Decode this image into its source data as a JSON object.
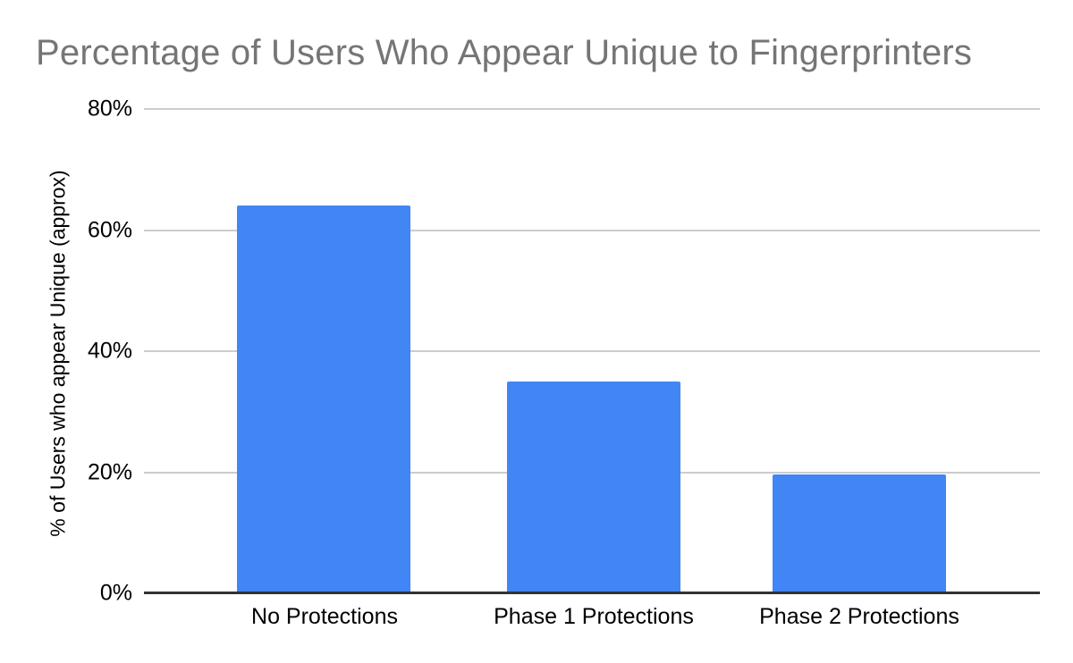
{
  "chart_data": {
    "type": "bar",
    "title": "Percentage of Users Who Appear Unique to Fingerprinters",
    "xlabel": "",
    "ylabel": "% of Users who appear Unique (approx)",
    "categories": [
      "No Protections",
      "Phase 1 Protections",
      "Phase 2 Protections"
    ],
    "values": [
      64,
      35,
      19.7
    ],
    "ylim": [
      0,
      80
    ],
    "ytick_labels": [
      "80%",
      "60%",
      "40%",
      "20%",
      "0%"
    ],
    "grid": "horizontal-only",
    "legend_position": "none",
    "bar_color": "#4285f4"
  },
  "colors": {
    "title_text": "#757575",
    "axis_text": "#000000",
    "gridline": "#cccccc",
    "baseline": "#333333",
    "background": "#ffffff"
  }
}
